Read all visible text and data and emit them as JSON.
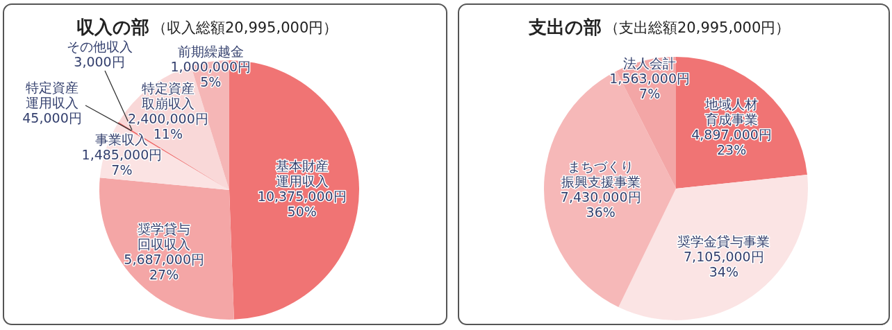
{
  "chart_data": [
    {
      "type": "pie",
      "title": "収入の部",
      "subtitle": "（収入総額20,995,000円）",
      "categories": [
        "基本財産運用収入",
        "奨学貸与回収収入",
        "事業収入",
        "特定資産運用収入",
        "その他収入",
        "特定資産取崩収入",
        "前期繰越金"
      ],
      "values": [
        10375000,
        5687000,
        1485000,
        45000,
        3000,
        2400000,
        1000000
      ],
      "colors": [
        "#f07474",
        "#f4a6a6",
        "#fbe3e3",
        "#ee6a6a",
        "#f29c9c",
        "#f9d8d8",
        "#f5b6b6"
      ],
      "value_labels": [
        "10,375,000円\n50%",
        "5,687,000円\n27%",
        "1,485,000円\n7%",
        "45,000円",
        "3,000円",
        "2,400,000円\n11%",
        "1,000,000円\n5%"
      ]
    },
    {
      "type": "pie",
      "title": "支出の部",
      "subtitle": "（支出総額20,995,000円）",
      "categories": [
        "地域人材育成事業",
        "奨学金貸与事業",
        "まちづくり振興支援事業",
        "法人会計"
      ],
      "values": [
        4897000,
        7105000,
        7430000,
        1563000
      ],
      "colors": [
        "#f07474",
        "#fbe4e4",
        "#f6b8b8",
        "#f3a6a6"
      ],
      "value_labels": [
        "4,897,000円\n23%",
        "7,105,000円\n34%",
        "7,430,000円\n36%",
        "1,563,000円\n7%"
      ]
    }
  ]
}
